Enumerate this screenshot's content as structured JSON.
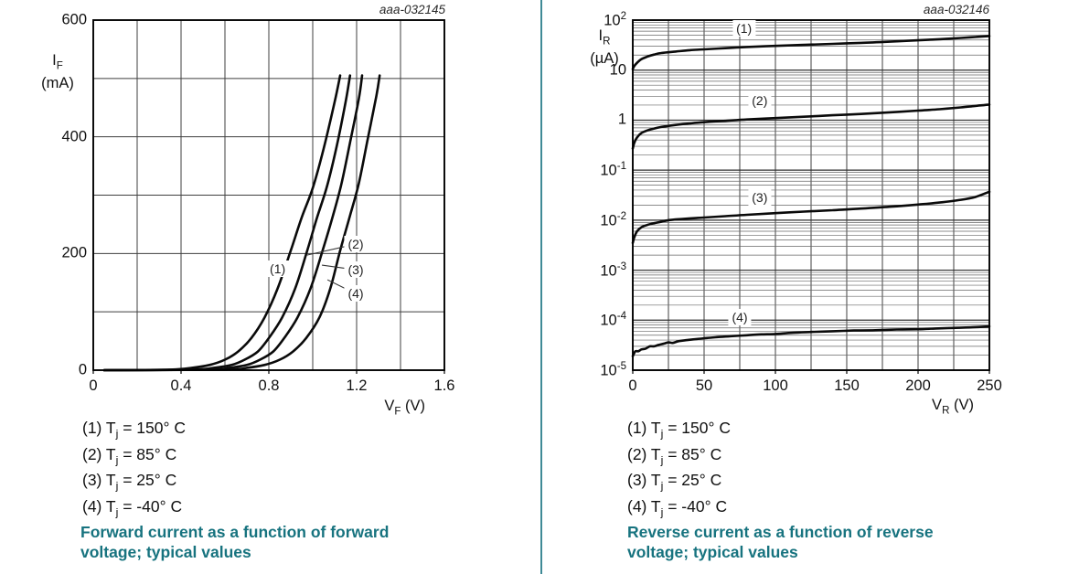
{
  "page": {
    "divider_color": "#3f8a96",
    "caption_color": "#17737f"
  },
  "panels": [
    {
      "figure_id": "aaa-032145",
      "legend": [
        "(1) T_j = 150° C",
        "(2) T_j = 85° C",
        "(3) T_j = 25° C",
        "(4) T_j = -40° C"
      ],
      "caption_lines": [
        "Forward current as a function of forward",
        "voltage; typical values"
      ]
    },
    {
      "figure_id": "aaa-032146",
      "legend": [
        "(1) T_j = 150° C",
        "(2) T_j = 85° C",
        "(3) T_j = 25° C",
        "(4) T_j = -40° C"
      ],
      "caption_lines": [
        "Reverse current as a function of reverse",
        "voltage; typical values"
      ]
    }
  ],
  "chart_data": [
    {
      "type": "line",
      "figure_id": "aaa-032145",
      "title": "Forward current as a function of forward voltage; typical values",
      "xlabel": "V_F (V)",
      "ylabel_lines": [
        "I_F",
        "(mA)"
      ],
      "xscale": "linear",
      "yscale": "linear",
      "xlim": [
        0,
        1.6
      ],
      "ylim": [
        0,
        600
      ],
      "x_grid_step": 0.2,
      "y_grid_step": 100,
      "grid": true,
      "x_tick_values": [
        0,
        0.4,
        0.8,
        1.2,
        1.6
      ],
      "x_tick_labels": [
        "0",
        "0.4",
        "0.8",
        "1.2",
        "1.6"
      ],
      "y_tick_values": [
        0,
        200,
        400,
        600
      ],
      "y_tick_labels": [
        "0",
        "200",
        "400",
        "600"
      ],
      "series": [
        {
          "label": "(1)",
          "name": "T_j = 150° C",
          "points": [
            [
              0.05,
              0
            ],
            [
              0.35,
              1
            ],
            [
              0.45,
              4
            ],
            [
              0.53,
              9
            ],
            [
              0.6,
              18
            ],
            [
              0.66,
              32
            ],
            [
              0.72,
              55
            ],
            [
              0.78,
              90
            ],
            [
              0.84,
              140
            ],
            [
              0.9,
              205
            ],
            [
              0.95,
              262
            ],
            [
              1.0,
              312
            ],
            [
              1.05,
              380
            ],
            [
              1.1,
              460
            ],
            [
              1.125,
              505
            ]
          ]
        },
        {
          "label": "(2)",
          "name": "T_j = 85° C",
          "points": [
            [
              0.05,
              0
            ],
            [
              0.45,
              1
            ],
            [
              0.55,
              4
            ],
            [
              0.63,
              9
            ],
            [
              0.69,
              18
            ],
            [
              0.75,
              32
            ],
            [
              0.8,
              55
            ],
            [
              0.86,
              90
            ],
            [
              0.92,
              140
            ],
            [
              0.975,
              205
            ],
            [
              1.02,
              262
            ],
            [
              1.065,
              315
            ],
            [
              1.11,
              385
            ],
            [
              1.15,
              460
            ],
            [
              1.17,
              505
            ]
          ]
        },
        {
          "label": "(3)",
          "name": "T_j = 25° C",
          "points": [
            [
              0.05,
              0
            ],
            [
              0.52,
              1
            ],
            [
              0.62,
              4
            ],
            [
              0.7,
              9
            ],
            [
              0.76,
              18
            ],
            [
              0.82,
              32
            ],
            [
              0.87,
              55
            ],
            [
              0.93,
              90
            ],
            [
              0.99,
              140
            ],
            [
              1.045,
              205
            ],
            [
              1.09,
              262
            ],
            [
              1.13,
              318
            ],
            [
              1.17,
              390
            ],
            [
              1.21,
              465
            ],
            [
              1.225,
              505
            ]
          ]
        },
        {
          "label": "(4)",
          "name": "T_j = -40° C",
          "points": [
            [
              0.05,
              0
            ],
            [
              0.6,
              1
            ],
            [
              0.7,
              4
            ],
            [
              0.78,
              9
            ],
            [
              0.85,
              18
            ],
            [
              0.91,
              32
            ],
            [
              0.97,
              55
            ],
            [
              1.03,
              90
            ],
            [
              1.08,
              140
            ],
            [
              1.125,
              205
            ],
            [
              1.17,
              265
            ],
            [
              1.21,
              320
            ],
            [
              1.25,
              395
            ],
            [
              1.29,
              470
            ],
            [
              1.305,
              505
            ]
          ]
        }
      ],
      "annotations": [
        {
          "label": "(1)",
          "x": 0.84,
          "y": 174
        },
        {
          "label": "(2)",
          "x": 1.196,
          "y": 216,
          "leader_to": [
            0.971,
            197
          ]
        },
        {
          "label": "(3)",
          "x": 1.196,
          "y": 172,
          "leader_to": [
            1.042,
            180
          ]
        },
        {
          "label": "(4)",
          "x": 1.196,
          "y": 131,
          "leader_to": [
            1.067,
            155
          ]
        }
      ]
    },
    {
      "type": "line",
      "figure_id": "aaa-032146",
      "title": "Reverse current as a function of reverse voltage; typical values",
      "xlabel": "V_R (V)",
      "ylabel_lines": [
        "I_R",
        "(µA)"
      ],
      "xscale": "linear",
      "yscale": "log",
      "xlim": [
        0,
        250
      ],
      "ylim": [
        1e-05,
        100
      ],
      "x_grid_step": 25,
      "grid": true,
      "x_tick_values": [
        0,
        50,
        100,
        150,
        200,
        250
      ],
      "x_tick_labels": [
        "0",
        "50",
        "100",
        "150",
        "200",
        "250"
      ],
      "y_tick_values": [
        100,
        10,
        1,
        0.1,
        0.01,
        0.001,
        0.0001,
        1e-05
      ],
      "y_tick_labels": [
        "10^2",
        "10",
        "1",
        "10^-1",
        "10^-2",
        "10^-3",
        "10^-4",
        "10^-5"
      ],
      "series": [
        {
          "label": "(1)",
          "name": "T_j = 150° C",
          "points": [
            [
              0,
              10.5
            ],
            [
              1,
              12
            ],
            [
              3,
              14
            ],
            [
              6,
              16.5
            ],
            [
              10,
              18.5
            ],
            [
              15,
              20.5
            ],
            [
              20,
              22
            ],
            [
              30,
              23.5
            ],
            [
              40,
              25
            ],
            [
              50,
              26
            ],
            [
              65,
              27.5
            ],
            [
              80,
              29
            ],
            [
              100,
              30.5
            ],
            [
              120,
              32
            ],
            [
              140,
              33.5
            ],
            [
              160,
              35
            ],
            [
              180,
              37
            ],
            [
              200,
              39.5
            ],
            [
              215,
              41.5
            ],
            [
              230,
              44
            ],
            [
              240,
              46
            ],
            [
              250,
              48
            ]
          ]
        },
        {
          "label": "(2)",
          "name": "T_j = 85° C",
          "points": [
            [
              0,
              0.27
            ],
            [
              1,
              0.35
            ],
            [
              3,
              0.45
            ],
            [
              6,
              0.55
            ],
            [
              10,
              0.62
            ],
            [
              15,
              0.68
            ],
            [
              20,
              0.73
            ],
            [
              30,
              0.8
            ],
            [
              40,
              0.86
            ],
            [
              50,
              0.91
            ],
            [
              65,
              0.97
            ],
            [
              80,
              1.03
            ],
            [
              100,
              1.1
            ],
            [
              120,
              1.17
            ],
            [
              140,
              1.25
            ],
            [
              160,
              1.33
            ],
            [
              180,
              1.43
            ],
            [
              200,
              1.55
            ],
            [
              215,
              1.65
            ],
            [
              230,
              1.8
            ],
            [
              240,
              1.92
            ],
            [
              250,
              2.05
            ]
          ]
        },
        {
          "label": "(3)",
          "name": "T_j = 25° C",
          "points": [
            [
              0,
              0.0035
            ],
            [
              1,
              0.0045
            ],
            [
              3,
              0.006
            ],
            [
              6,
              0.0072
            ],
            [
              10,
              0.008
            ],
            [
              15,
              0.0087
            ],
            [
              20,
              0.0093
            ],
            [
              25,
              0.01
            ],
            [
              35,
              0.0106
            ],
            [
              50,
              0.0113
            ],
            [
              65,
              0.012
            ],
            [
              80,
              0.0128
            ],
            [
              100,
              0.0138
            ],
            [
              120,
              0.0148
            ],
            [
              140,
              0.0158
            ],
            [
              160,
              0.017
            ],
            [
              180,
              0.0185
            ],
            [
              200,
              0.0205
            ],
            [
              215,
              0.0225
            ],
            [
              230,
              0.0255
            ],
            [
              240,
              0.029
            ],
            [
              250,
              0.037
            ]
          ]
        },
        {
          "label": "(4)",
          "name": "T_j = -40° C",
          "points": [
            [
              0,
              1.9e-05
            ],
            [
              1,
              2.2e-05
            ],
            [
              2,
              2.4e-05
            ],
            [
              4,
              2.4e-05
            ],
            [
              6,
              2.6e-05
            ],
            [
              9,
              2.7e-05
            ],
            [
              12,
              3e-05
            ],
            [
              15,
              3e-05
            ],
            [
              18,
              3.2e-05
            ],
            [
              22,
              3.4e-05
            ],
            [
              25,
              3.6e-05
            ],
            [
              28,
              3.5e-05
            ],
            [
              32,
              3.8e-05
            ],
            [
              38,
              4e-05
            ],
            [
              45,
              4.2e-05
            ],
            [
              52,
              4.4e-05
            ],
            [
              60,
              4.6e-05
            ],
            [
              70,
              4.8e-05
            ],
            [
              80,
              5e-05
            ],
            [
              90,
              5.2e-05
            ],
            [
              100,
              5.3e-05
            ],
            [
              112,
              5.6e-05
            ],
            [
              125,
              5.8e-05
            ],
            [
              140,
              6e-05
            ],
            [
              155,
              6.2e-05
            ],
            [
              170,
              6.3e-05
            ],
            [
              185,
              6.5e-05
            ],
            [
              200,
              6.6e-05
            ],
            [
              212,
              6.8e-05
            ],
            [
              225,
              7e-05
            ],
            [
              238,
              7.2e-05
            ],
            [
              250,
              7.5e-05
            ]
          ]
        }
      ],
      "annotations": [
        {
          "label": "(1)",
          "x": 78,
          "y": 68
        },
        {
          "label": "(2)",
          "x": 89,
          "y": 2.45
        },
        {
          "label": "(3)",
          "x": 89,
          "y": 0.028
        },
        {
          "label": "(4)",
          "x": 75,
          "y": 0.000115
        }
      ]
    }
  ]
}
